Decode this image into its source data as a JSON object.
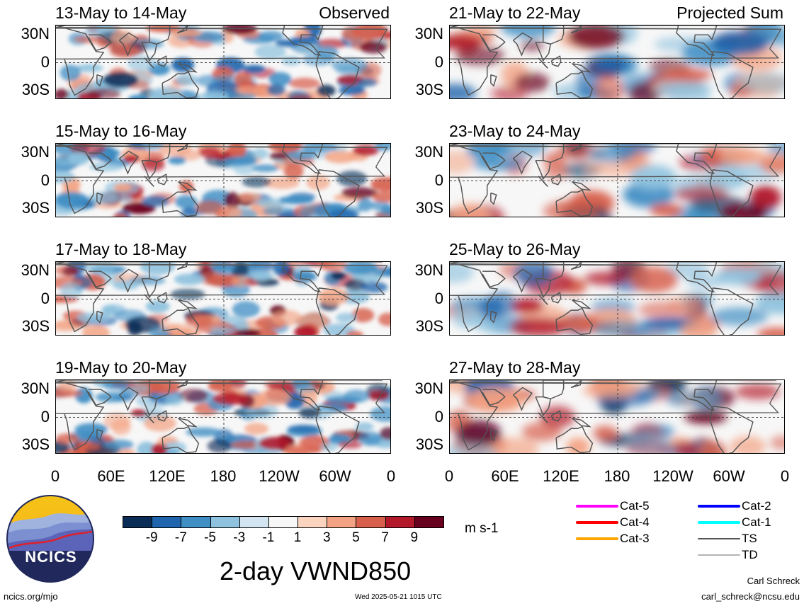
{
  "panels": [
    {
      "date": "13-May to 14-May",
      "tag": "Observed",
      "kind": "observed"
    },
    {
      "date": "21-May to 22-May",
      "tag": "Projected Sum",
      "kind": "projected"
    },
    {
      "date": "15-May to 16-May",
      "tag": "",
      "kind": "observed"
    },
    {
      "date": "23-May to 24-May",
      "tag": "",
      "kind": "projected"
    },
    {
      "date": "17-May to 18-May",
      "tag": "",
      "kind": "observed"
    },
    {
      "date": "25-May to 26-May",
      "tag": "",
      "kind": "projected"
    },
    {
      "date": "19-May to 20-May",
      "tag": "",
      "kind": "observed"
    },
    {
      "date": "27-May to 28-May",
      "tag": "",
      "kind": "projected"
    }
  ],
  "lat_labels": [
    "30N",
    "0",
    "30S"
  ],
  "lon_labels": [
    "0",
    "60E",
    "120E",
    "180",
    "120W",
    "60W",
    "0"
  ],
  "colorbar": {
    "colors": [
      "#0a2d57",
      "#1f65ad",
      "#3f8ec4",
      "#8fc2de",
      "#d3e5f1",
      "#f7f7f7",
      "#fbd4c0",
      "#f3a383",
      "#d75f4c",
      "#b3182b",
      "#67001f"
    ],
    "labels": [
      "-9",
      "-7",
      "-5",
      "-3",
      "-1",
      "1",
      "3",
      "5",
      "7",
      "9"
    ],
    "units": "m s-1"
  },
  "main_title": "2-day VWND850",
  "legend": [
    {
      "label": "Cat-5",
      "color": "#ff00ff"
    },
    {
      "label": "Cat-4",
      "color": "#ff0000"
    },
    {
      "label": "Cat-3",
      "color": "#ffa500"
    },
    {
      "label": "Cat-2",
      "color": "#0000ff"
    },
    {
      "label": "Cat-1",
      "color": "#00ffff"
    },
    {
      "label": "TS",
      "color": "#555555"
    },
    {
      "label": "TD",
      "color": "#b5b5b5"
    }
  ],
  "logo": {
    "text": "NCICS"
  },
  "footer": {
    "url": "ncics.org/mjo",
    "timestamp": "Wed 2025-05-21 1015 UTC",
    "author": "Carl Schreck",
    "email": "carl_schreck@ncsu.edu"
  }
}
